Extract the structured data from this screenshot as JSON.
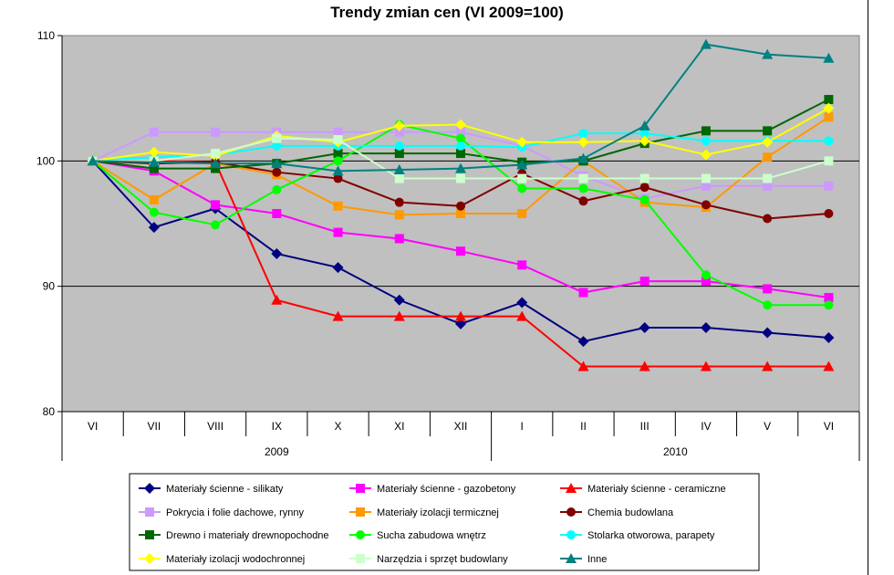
{
  "chart_data": {
    "type": "line",
    "title": "Trendy zmian cen (VI 2009=100)",
    "categories": [
      "VI",
      "VII",
      "VIII",
      "IX",
      "X",
      "XI",
      "XII",
      "I",
      "II",
      "III",
      "IV",
      "V",
      "VI"
    ],
    "year_groups": [
      {
        "label": "2009",
        "from": 0,
        "to": 6
      },
      {
        "label": "2010",
        "from": 7,
        "to": 12
      }
    ],
    "ylim": [
      80,
      110
    ],
    "yticks": [
      80,
      90,
      100,
      110
    ],
    "grid": true,
    "plot_background": "#c0c0c0",
    "legend_position": "bottom",
    "series": [
      {
        "name": "Materiały ścienne - silikaty",
        "color": "#000080",
        "marker": "diamond",
        "values": [
          100,
          94.7,
          96.2,
          92.6,
          91.5,
          88.9,
          87.0,
          88.7,
          85.6,
          86.7,
          86.7,
          86.3,
          85.9
        ]
      },
      {
        "name": "Materiały ścienne - gazobetony",
        "color": "#ff00ff",
        "marker": "square",
        "values": [
          100,
          99.2,
          96.5,
          95.8,
          94.3,
          93.8,
          92.8,
          91.7,
          89.5,
          90.4,
          90.4,
          89.8,
          89.1
        ]
      },
      {
        "name": "Materiały ścienne - ceramiczne",
        "color": "#ff0000",
        "marker": "triangle",
        "values": [
          100,
          100.0,
          99.9,
          88.9,
          87.6,
          87.6,
          87.6,
          87.6,
          83.6,
          83.6,
          83.6,
          83.6,
          83.6
        ]
      },
      {
        "name": "Pokrycia i folie dachowe, rynny",
        "color": "#cc99ff",
        "marker": "square",
        "values": [
          100,
          102.3,
          102.3,
          102.3,
          102.3,
          102.3,
          102.3,
          101.2,
          98.8,
          97.0,
          98.0,
          98.0,
          98.0
        ]
      },
      {
        "name": "Materiały izolacji termicznej",
        "color": "#ff9900",
        "marker": "square",
        "values": [
          100,
          96.9,
          99.8,
          98.9,
          96.4,
          95.7,
          95.8,
          95.8,
          100.0,
          96.7,
          96.3,
          100.3,
          103.5
        ]
      },
      {
        "name": "Chemia budowlana",
        "color": "#800000",
        "marker": "circle",
        "values": [
          100,
          99.8,
          99.9,
          99.1,
          98.6,
          96.7,
          96.4,
          99.0,
          96.8,
          97.9,
          96.5,
          95.4,
          95.8
        ]
      },
      {
        "name": "Drewno i materiały drewnopochodne",
        "color": "#006600",
        "marker": "square",
        "values": [
          100,
          99.4,
          99.4,
          99.8,
          100.6,
          100.6,
          100.6,
          99.9,
          100.0,
          101.4,
          102.4,
          102.4,
          104.9
        ]
      },
      {
        "name": "Sucha zabudowa wnętrz",
        "color": "#00ff00",
        "marker": "circle",
        "values": [
          100,
          95.9,
          94.9,
          97.7,
          100.0,
          102.9,
          101.8,
          97.8,
          97.8,
          96.9,
          90.9,
          88.5,
          88.5
        ]
      },
      {
        "name": "Stolarka otworowa, parapety",
        "color": "#00ffff",
        "marker": "circle",
        "values": [
          100,
          100.3,
          100.5,
          101.2,
          101.2,
          101.2,
          101.2,
          101.1,
          102.2,
          102.2,
          101.6,
          101.6,
          101.6
        ]
      },
      {
        "name": "Materiały izolacji wodochronnej",
        "color": "#ffff00",
        "marker": "diamond",
        "values": [
          100,
          100.7,
          100.4,
          102.0,
          101.5,
          102.8,
          102.9,
          101.5,
          101.5,
          101.6,
          100.5,
          101.5,
          104.2
        ]
      },
      {
        "name": "Narzędzia i sprzęt budowlany",
        "color": "#ccffcc",
        "marker": "square",
        "values": [
          100,
          100.0,
          100.6,
          101.8,
          101.7,
          98.6,
          98.6,
          98.6,
          98.6,
          98.6,
          98.6,
          98.6,
          100.0
        ]
      },
      {
        "name": "Inne",
        "color": "#008080",
        "marker": "triangle",
        "values": [
          100,
          99.9,
          99.8,
          99.8,
          99.2,
          99.3,
          99.4,
          99.7,
          100.2,
          102.8,
          109.3,
          108.5,
          108.2
        ]
      }
    ]
  }
}
